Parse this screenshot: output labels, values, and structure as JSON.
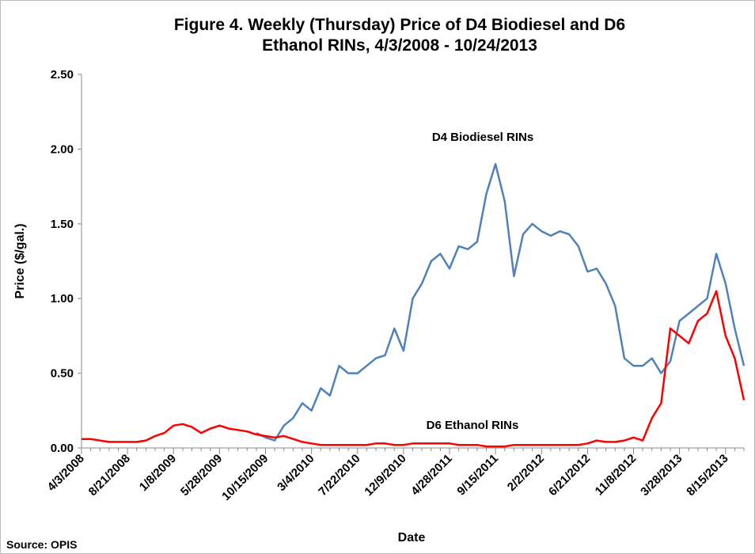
{
  "chart_data": {
    "type": "line",
    "title": "Figure 4.  Weekly (Thursday) Price of D4 Biodiesel and D6",
    "subtitle": "Ethanol RINs, 4/3/2008 - 10/24/2013",
    "x_label": "Date",
    "y_label": "Price ($/gal.)",
    "source": "Source: OPIS",
    "annotations": [
      "D4 Biodiesel RINs",
      "D6 Ethanol RINs"
    ],
    "categories": [
      "4/3/2008",
      null,
      null,
      null,
      null,
      "8/21/2008",
      null,
      null,
      null,
      null,
      "1/8/2009",
      null,
      null,
      null,
      null,
      "5/28/2009",
      null,
      null,
      null,
      null,
      "10/15/2009",
      null,
      null,
      null,
      null,
      "3/4/2010",
      null,
      null,
      null,
      null,
      "7/22/2010",
      null,
      null,
      null,
      null,
      "12/9/2010",
      null,
      null,
      null,
      null,
      "4/28/2011",
      null,
      null,
      null,
      null,
      "9/15/2011",
      null,
      null,
      null,
      null,
      "2/2/2012",
      null,
      null,
      null,
      null,
      "6/21/2012",
      null,
      null,
      null,
      null,
      "11/8/2012",
      null,
      null,
      null,
      null,
      "3/28/2013",
      null,
      null,
      null,
      null,
      "8/15/2013",
      null,
      null
    ],
    "series": [
      {
        "name": "D4 Biodiesel RINs",
        "color": "#4f81bd",
        "values": [
          null,
          null,
          null,
          null,
          null,
          null,
          null,
          null,
          null,
          null,
          null,
          null,
          null,
          null,
          null,
          null,
          null,
          null,
          null,
          0.1,
          0.07,
          0.05,
          0.15,
          0.2,
          0.3,
          0.25,
          0.4,
          0.35,
          0.55,
          0.5,
          0.5,
          0.55,
          0.6,
          0.62,
          0.8,
          0.65,
          1.0,
          1.1,
          1.25,
          1.3,
          1.2,
          1.35,
          1.33,
          1.38,
          1.7,
          1.9,
          1.65,
          1.15,
          1.43,
          1.5,
          1.45,
          1.42,
          1.45,
          1.43,
          1.35,
          1.18,
          1.2,
          1.1,
          0.95,
          0.6,
          0.55,
          0.55,
          0.6,
          0.5,
          0.58,
          0.85,
          0.9,
          0.95,
          1.0,
          1.3,
          1.1,
          0.8,
          0.55
        ]
      },
      {
        "name": "D6 Ethanol RINs",
        "color": "#ff0000",
        "values": [
          0.06,
          0.06,
          0.05,
          0.04,
          0.04,
          0.04,
          0.04,
          0.05,
          0.08,
          0.1,
          0.15,
          0.16,
          0.14,
          0.1,
          0.13,
          0.15,
          0.13,
          0.12,
          0.11,
          0.09,
          0.08,
          0.07,
          0.08,
          0.06,
          0.04,
          0.03,
          0.02,
          0.02,
          0.02,
          0.02,
          0.02,
          0.02,
          0.03,
          0.03,
          0.02,
          0.02,
          0.03,
          0.03,
          0.03,
          0.03,
          0.03,
          0.02,
          0.02,
          0.02,
          0.01,
          0.01,
          0.01,
          0.02,
          0.02,
          0.02,
          0.02,
          0.02,
          0.02,
          0.02,
          0.02,
          0.03,
          0.05,
          0.04,
          0.04,
          0.05,
          0.07,
          0.05,
          0.2,
          0.3,
          0.8,
          0.75,
          0.7,
          0.85,
          0.9,
          1.05,
          0.75,
          0.6,
          0.32
        ]
      }
    ],
    "ylim": [
      0,
      2.5
    ],
    "yticks": [
      {
        "value": 0,
        "label": "0.00"
      },
      {
        "value": 0.5,
        "label": "0.50"
      },
      {
        "value": 1,
        "label": "1.00"
      },
      {
        "value": 1.5,
        "label": "1.50"
      },
      {
        "value": 2,
        "label": "2.00"
      },
      {
        "value": 2.5,
        "label": "2.50"
      }
    ],
    "grid": false
  }
}
